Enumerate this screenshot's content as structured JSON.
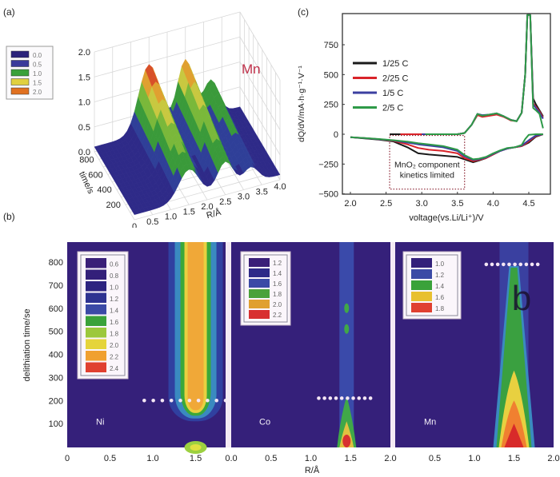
{
  "panels": {
    "a": {
      "label": "(a)"
    },
    "b": {
      "label": "(b)"
    },
    "c": {
      "label": "(c)"
    }
  },
  "chart_data": [
    {
      "id": "a",
      "type": "surface3d",
      "title": "Mn",
      "title_color": "#c0304a",
      "xlabel": "R/Å",
      "ylabel": "time/s",
      "zlabel": "",
      "x_ticks": [
        "0",
        "0.5",
        "1.0",
        "1.5",
        "2.0",
        "2.5",
        "3.0",
        "3.5",
        "4.0"
      ],
      "y_ticks": [
        "200",
        "400",
        "600",
        "800"
      ],
      "z_ticks": [
        "0.0",
        "0.5",
        "1.0",
        "1.5",
        "2.0"
      ],
      "xlim": [
        0,
        4.0
      ],
      "ylim": [
        0,
        900
      ],
      "zlim": [
        0,
        2.0
      ],
      "peaks_R": [
        1.5,
        2.5,
        3.2
      ],
      "peaks_height": [
        1.35,
        1.25,
        0.7
      ],
      "legend": {
        "placement": "left",
        "entries": [
          {
            "label": "0.0",
            "color": "#2b237a"
          },
          {
            "label": "0.5",
            "color": "#3a3a9a"
          },
          {
            "label": "1.0",
            "color": "#3aa13a"
          },
          {
            "label": "1.5",
            "color": "#e0d040"
          },
          {
            "label": "2.0",
            "color": "#e07020"
          }
        ]
      }
    },
    {
      "id": "b",
      "type": "heatmap",
      "ylabel": "delithiation time/se",
      "xlabel": "R/Å",
      "ylim": [
        0,
        885
      ],
      "y_ticks": [
        "100",
        "200",
        "300",
        "400",
        "500",
        "600",
        "700",
        "800"
      ],
      "subplots": [
        {
          "element": "Ni",
          "x_ticks": [
            "0",
            "0.5",
            "1.0",
            "1.5"
          ],
          "xlim": [
            0,
            1.85
          ],
          "peak_R": 1.5,
          "marker_time": 200,
          "marker_R_range": [
            0.9,
            1.85
          ],
          "description": "strong peak band at R≈1.5 Å present throughout, weaker below 100 s",
          "legend": [
            {
              "label": "0.6",
              "color": "#3a1f78"
            },
            {
              "label": "0.8",
              "color": "#33207a"
            },
            {
              "label": "1.0",
              "color": "#2d2480"
            },
            {
              "label": "1.2",
              "color": "#2e3391"
            },
            {
              "label": "1.4",
              "color": "#3b4aa6"
            },
            {
              "label": "1.6",
              "color": "#3aa23a"
            },
            {
              "label": "1.8",
              "color": "#9cc83c"
            },
            {
              "label": "2.0",
              "color": "#e5d43a"
            },
            {
              "label": "2.2",
              "color": "#f0a030"
            },
            {
              "label": "2.4",
              "color": "#e04030"
            }
          ]
        },
        {
          "element": "Co",
          "x_ticks": [
            "0.0",
            "0.5",
            "1.0",
            "1.5",
            "2.0"
          ],
          "xlim": [
            0,
            2.0
          ],
          "peak_R": 1.45,
          "marker_time": 210,
          "marker_R_range": [
            1.1,
            1.75
          ],
          "description": "peak intensity only at early times (<200 s) near R≈1.45 Å",
          "legend": [
            {
              "label": "1.2",
              "color": "#3a1f78"
            },
            {
              "label": "1.4",
              "color": "#2e2a88"
            },
            {
              "label": "1.6",
              "color": "#3b4aa6"
            },
            {
              "label": "1.8",
              "color": "#4aa23a"
            },
            {
              "label": "2.0",
              "color": "#e0a030"
            },
            {
              "label": "2.2",
              "color": "#d83030"
            }
          ]
        },
        {
          "element": "Mn",
          "x_ticks": [
            "0.5",
            "1.0",
            "1.5",
            "2.0"
          ],
          "xlim": [
            0,
            2.0
          ],
          "peak_R": 1.5,
          "marker_time": 790,
          "marker_R_range": [
            1.15,
            1.8
          ],
          "description": "peak intensity decays from early times to ~790 s near R≈1.5 Å",
          "legend": [
            {
              "label": "1.0",
              "color": "#33207a"
            },
            {
              "label": "1.2",
              "color": "#3b4aa6"
            },
            {
              "label": "1.4",
              "color": "#3aa23a"
            },
            {
              "label": "1.6",
              "color": "#e8c030"
            },
            {
              "label": "1.8",
              "color": "#e04030"
            }
          ]
        }
      ],
      "overlay_text": "b"
    },
    {
      "id": "c",
      "type": "line",
      "xlabel": "voltage(vs.Li/Li⁺)/V",
      "ylabel": "dQ/dV/mA·h·g⁻¹·V⁻¹",
      "xlim": [
        1.93,
        4.8
      ],
      "ylim": [
        -500,
        1000
      ],
      "x_ticks": [
        "2.0",
        "2.5",
        "3.0",
        "3.5",
        "4.0",
        "4.5"
      ],
      "y_ticks": [
        "−500",
        "−250",
        "0",
        "250",
        "500",
        "750"
      ],
      "grid": false,
      "legend_placement": "upper-left",
      "annotation": {
        "line1": "MnO₂ component",
        "line2": "kinetics limited",
        "x_range": [
          2.55,
          3.6
        ],
        "y_range": [
          -460,
          -10
        ]
      },
      "series": [
        {
          "name": "1/25 C",
          "color": "#1a1a1a",
          "charge": [
            [
              2.55,
              0
            ],
            [
              3.5,
              0
            ],
            [
              3.6,
              10
            ],
            [
              3.7,
              80
            ],
            [
              3.78,
              170
            ],
            [
              3.85,
              150
            ],
            [
              3.95,
              160
            ],
            [
              4.05,
              175
            ],
            [
              4.15,
              150
            ],
            [
              4.25,
              120
            ],
            [
              4.33,
              110
            ],
            [
              4.4,
              180
            ],
            [
              4.45,
              500
            ],
            [
              4.48,
              1000
            ],
            [
              4.52,
              1000
            ],
            [
              4.56,
              300
            ],
            [
              4.6,
              250
            ],
            [
              4.65,
              200
            ],
            [
              4.7,
              150
            ]
          ],
          "discharge": [
            [
              4.7,
              0
            ],
            [
              4.6,
              -20
            ],
            [
              4.5,
              -70
            ],
            [
              4.4,
              -100
            ],
            [
              4.3,
              -110
            ],
            [
              4.2,
              -120
            ],
            [
              4.1,
              -140
            ],
            [
              4.0,
              -170
            ],
            [
              3.9,
              -200
            ],
            [
              3.8,
              -220
            ],
            [
              3.72,
              -235
            ],
            [
              3.6,
              -210
            ],
            [
              3.5,
              -190
            ],
            [
              3.3,
              -180
            ],
            [
              3.1,
              -170
            ],
            [
              2.95,
              -160
            ],
            [
              2.8,
              -110
            ],
            [
              2.6,
              -60
            ],
            [
              2.4,
              -45
            ],
            [
              2.2,
              -35
            ],
            [
              2.0,
              -25
            ]
          ]
        },
        {
          "name": "2/25 C",
          "color": "#d9242a",
          "charge": [
            [
              2.7,
              0
            ],
            [
              3.5,
              0
            ],
            [
              3.6,
              10
            ],
            [
              3.7,
              80
            ],
            [
              3.78,
              160
            ],
            [
              3.85,
              145
            ],
            [
              3.95,
              155
            ],
            [
              4.05,
              165
            ],
            [
              4.15,
              145
            ],
            [
              4.25,
              115
            ],
            [
              4.33,
              110
            ],
            [
              4.4,
              180
            ],
            [
              4.45,
              500
            ],
            [
              4.48,
              1000
            ],
            [
              4.52,
              1000
            ],
            [
              4.56,
              260
            ],
            [
              4.6,
              230
            ],
            [
              4.65,
              190
            ],
            [
              4.7,
              140
            ]
          ],
          "discharge": [
            [
              4.7,
              0
            ],
            [
              4.6,
              -15
            ],
            [
              4.5,
              -60
            ],
            [
              4.4,
              -100
            ],
            [
              4.3,
              -110
            ],
            [
              4.2,
              -120
            ],
            [
              4.1,
              -140
            ],
            [
              4.0,
              -170
            ],
            [
              3.9,
              -200
            ],
            [
              3.8,
              -215
            ],
            [
              3.72,
              -225
            ],
            [
              3.6,
              -200
            ],
            [
              3.5,
              -160
            ],
            [
              3.3,
              -140
            ],
            [
              3.1,
              -130
            ],
            [
              2.95,
              -115
            ],
            [
              2.8,
              -85
            ],
            [
              2.6,
              -55
            ],
            [
              2.4,
              -42
            ],
            [
              2.2,
              -33
            ],
            [
              2.0,
              -25
            ]
          ]
        },
        {
          "name": "1/5 C",
          "color": "#3b3fa0",
          "charge": [
            [
              3.0,
              0
            ],
            [
              3.5,
              0
            ],
            [
              3.6,
              10
            ],
            [
              3.7,
              80
            ],
            [
              3.78,
              170
            ],
            [
              3.85,
              160
            ],
            [
              3.95,
              165
            ],
            [
              4.05,
              175
            ],
            [
              4.15,
              150
            ],
            [
              4.25,
              120
            ],
            [
              4.33,
              110
            ],
            [
              4.4,
              180
            ],
            [
              4.45,
              500
            ],
            [
              4.48,
              1000
            ],
            [
              4.52,
              1000
            ],
            [
              4.56,
              250
            ],
            [
              4.6,
              220
            ],
            [
              4.65,
              180
            ],
            [
              4.7,
              130
            ]
          ],
          "discharge": [
            [
              4.7,
              0
            ],
            [
              4.6,
              -10
            ],
            [
              4.5,
              -50
            ],
            [
              4.4,
              -95
            ],
            [
              4.3,
              -110
            ],
            [
              4.2,
              -120
            ],
            [
              4.1,
              -140
            ],
            [
              4.0,
              -165
            ],
            [
              3.9,
              -195
            ],
            [
              3.8,
              -210
            ],
            [
              3.72,
              -215
            ],
            [
              3.6,
              -185
            ],
            [
              3.5,
              -140
            ],
            [
              3.3,
              -110
            ],
            [
              3.1,
              -95
            ],
            [
              2.95,
              -85
            ],
            [
              2.8,
              -70
            ],
            [
              2.6,
              -52
            ],
            [
              2.4,
              -42
            ],
            [
              2.2,
              -33
            ],
            [
              2.0,
              -25
            ]
          ]
        },
        {
          "name": "2/5 C",
          "color": "#2e9a48",
          "charge": [
            [
              3.05,
              0
            ],
            [
              3.5,
              0
            ],
            [
              3.6,
              10
            ],
            [
              3.7,
              80
            ],
            [
              3.78,
              170
            ],
            [
              3.85,
              155
            ],
            [
              3.95,
              165
            ],
            [
              4.05,
              175
            ],
            [
              4.15,
              150
            ],
            [
              4.25,
              120
            ],
            [
              4.33,
              108
            ],
            [
              4.4,
              180
            ],
            [
              4.45,
              500
            ],
            [
              4.48,
              1000
            ],
            [
              4.52,
              1000
            ],
            [
              4.56,
              220
            ],
            [
              4.6,
              200
            ],
            [
              4.65,
              170
            ],
            [
              4.7,
              50
            ]
          ],
          "discharge": [
            [
              4.7,
              0
            ],
            [
              4.6,
              0
            ],
            [
              4.5,
              -5
            ],
            [
              4.45,
              -40
            ],
            [
              4.4,
              -90
            ],
            [
              4.3,
              -110
            ],
            [
              4.2,
              -115
            ],
            [
              4.1,
              -135
            ],
            [
              4.0,
              -160
            ],
            [
              3.9,
              -190
            ],
            [
              3.8,
              -205
            ],
            [
              3.72,
              -210
            ],
            [
              3.6,
              -175
            ],
            [
              3.5,
              -130
            ],
            [
              3.3,
              -100
            ],
            [
              3.1,
              -85
            ],
            [
              2.95,
              -75
            ],
            [
              2.8,
              -62
            ],
            [
              2.6,
              -50
            ],
            [
              2.4,
              -40
            ],
            [
              2.2,
              -32
            ],
            [
              2.0,
              -25
            ]
          ]
        }
      ]
    }
  ]
}
